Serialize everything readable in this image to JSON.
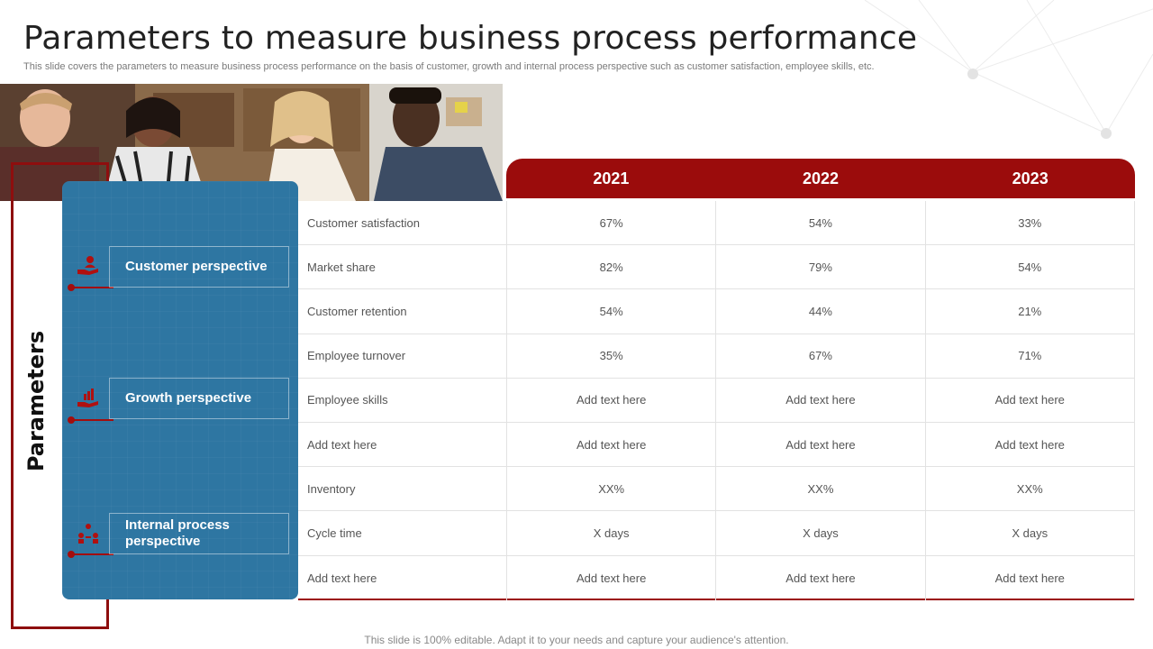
{
  "title": "Parameters to measure business process performance",
  "subtitle": "This slide covers the parameters to measure business process performance on the basis of customer, growth and internal process perspective such as customer satisfaction, employee skills, etc.",
  "side_label": "Parameters",
  "perspectives": [
    {
      "label": "Customer perspective",
      "icon": "hand-customer-icon"
    },
    {
      "label": "Growth perspective",
      "icon": "growth-chart-hand-icon"
    },
    {
      "label": "Internal process perspective",
      "icon": "team-process-icon"
    }
  ],
  "table": {
    "years": [
      "2021",
      "2022",
      "2023"
    ],
    "rows": [
      {
        "label": "Customer satisfaction",
        "values": [
          "67%",
          "54%",
          "33%"
        ]
      },
      {
        "label": "Market share",
        "values": [
          "82%",
          "79%",
          "54%"
        ]
      },
      {
        "label": "Customer retention",
        "values": [
          "54%",
          "44%",
          "21%"
        ]
      },
      {
        "label": "Employee turnover",
        "values": [
          "35%",
          "67%",
          "71%"
        ]
      },
      {
        "label": "Employee skills",
        "values": [
          "Add text here",
          "Add text here",
          "Add text here"
        ]
      },
      {
        "label": "Add text here",
        "values": [
          "Add text here",
          "Add text here",
          "Add text here"
        ]
      },
      {
        "label": "Inventory",
        "values": [
          "XX%",
          "XX%",
          "XX%"
        ]
      },
      {
        "label": "Cycle time",
        "values": [
          "X days",
          "X days",
          "X days"
        ]
      },
      {
        "label": "Add text here",
        "values": [
          "Add text here",
          "Add text here",
          "Add text here"
        ]
      }
    ]
  },
  "footer": "This slide is 100% editable. Adapt it to your needs and capture your audience's attention.",
  "colors": {
    "accent_red": "#9b0c0c",
    "panel_blue": "#2e76a2"
  }
}
